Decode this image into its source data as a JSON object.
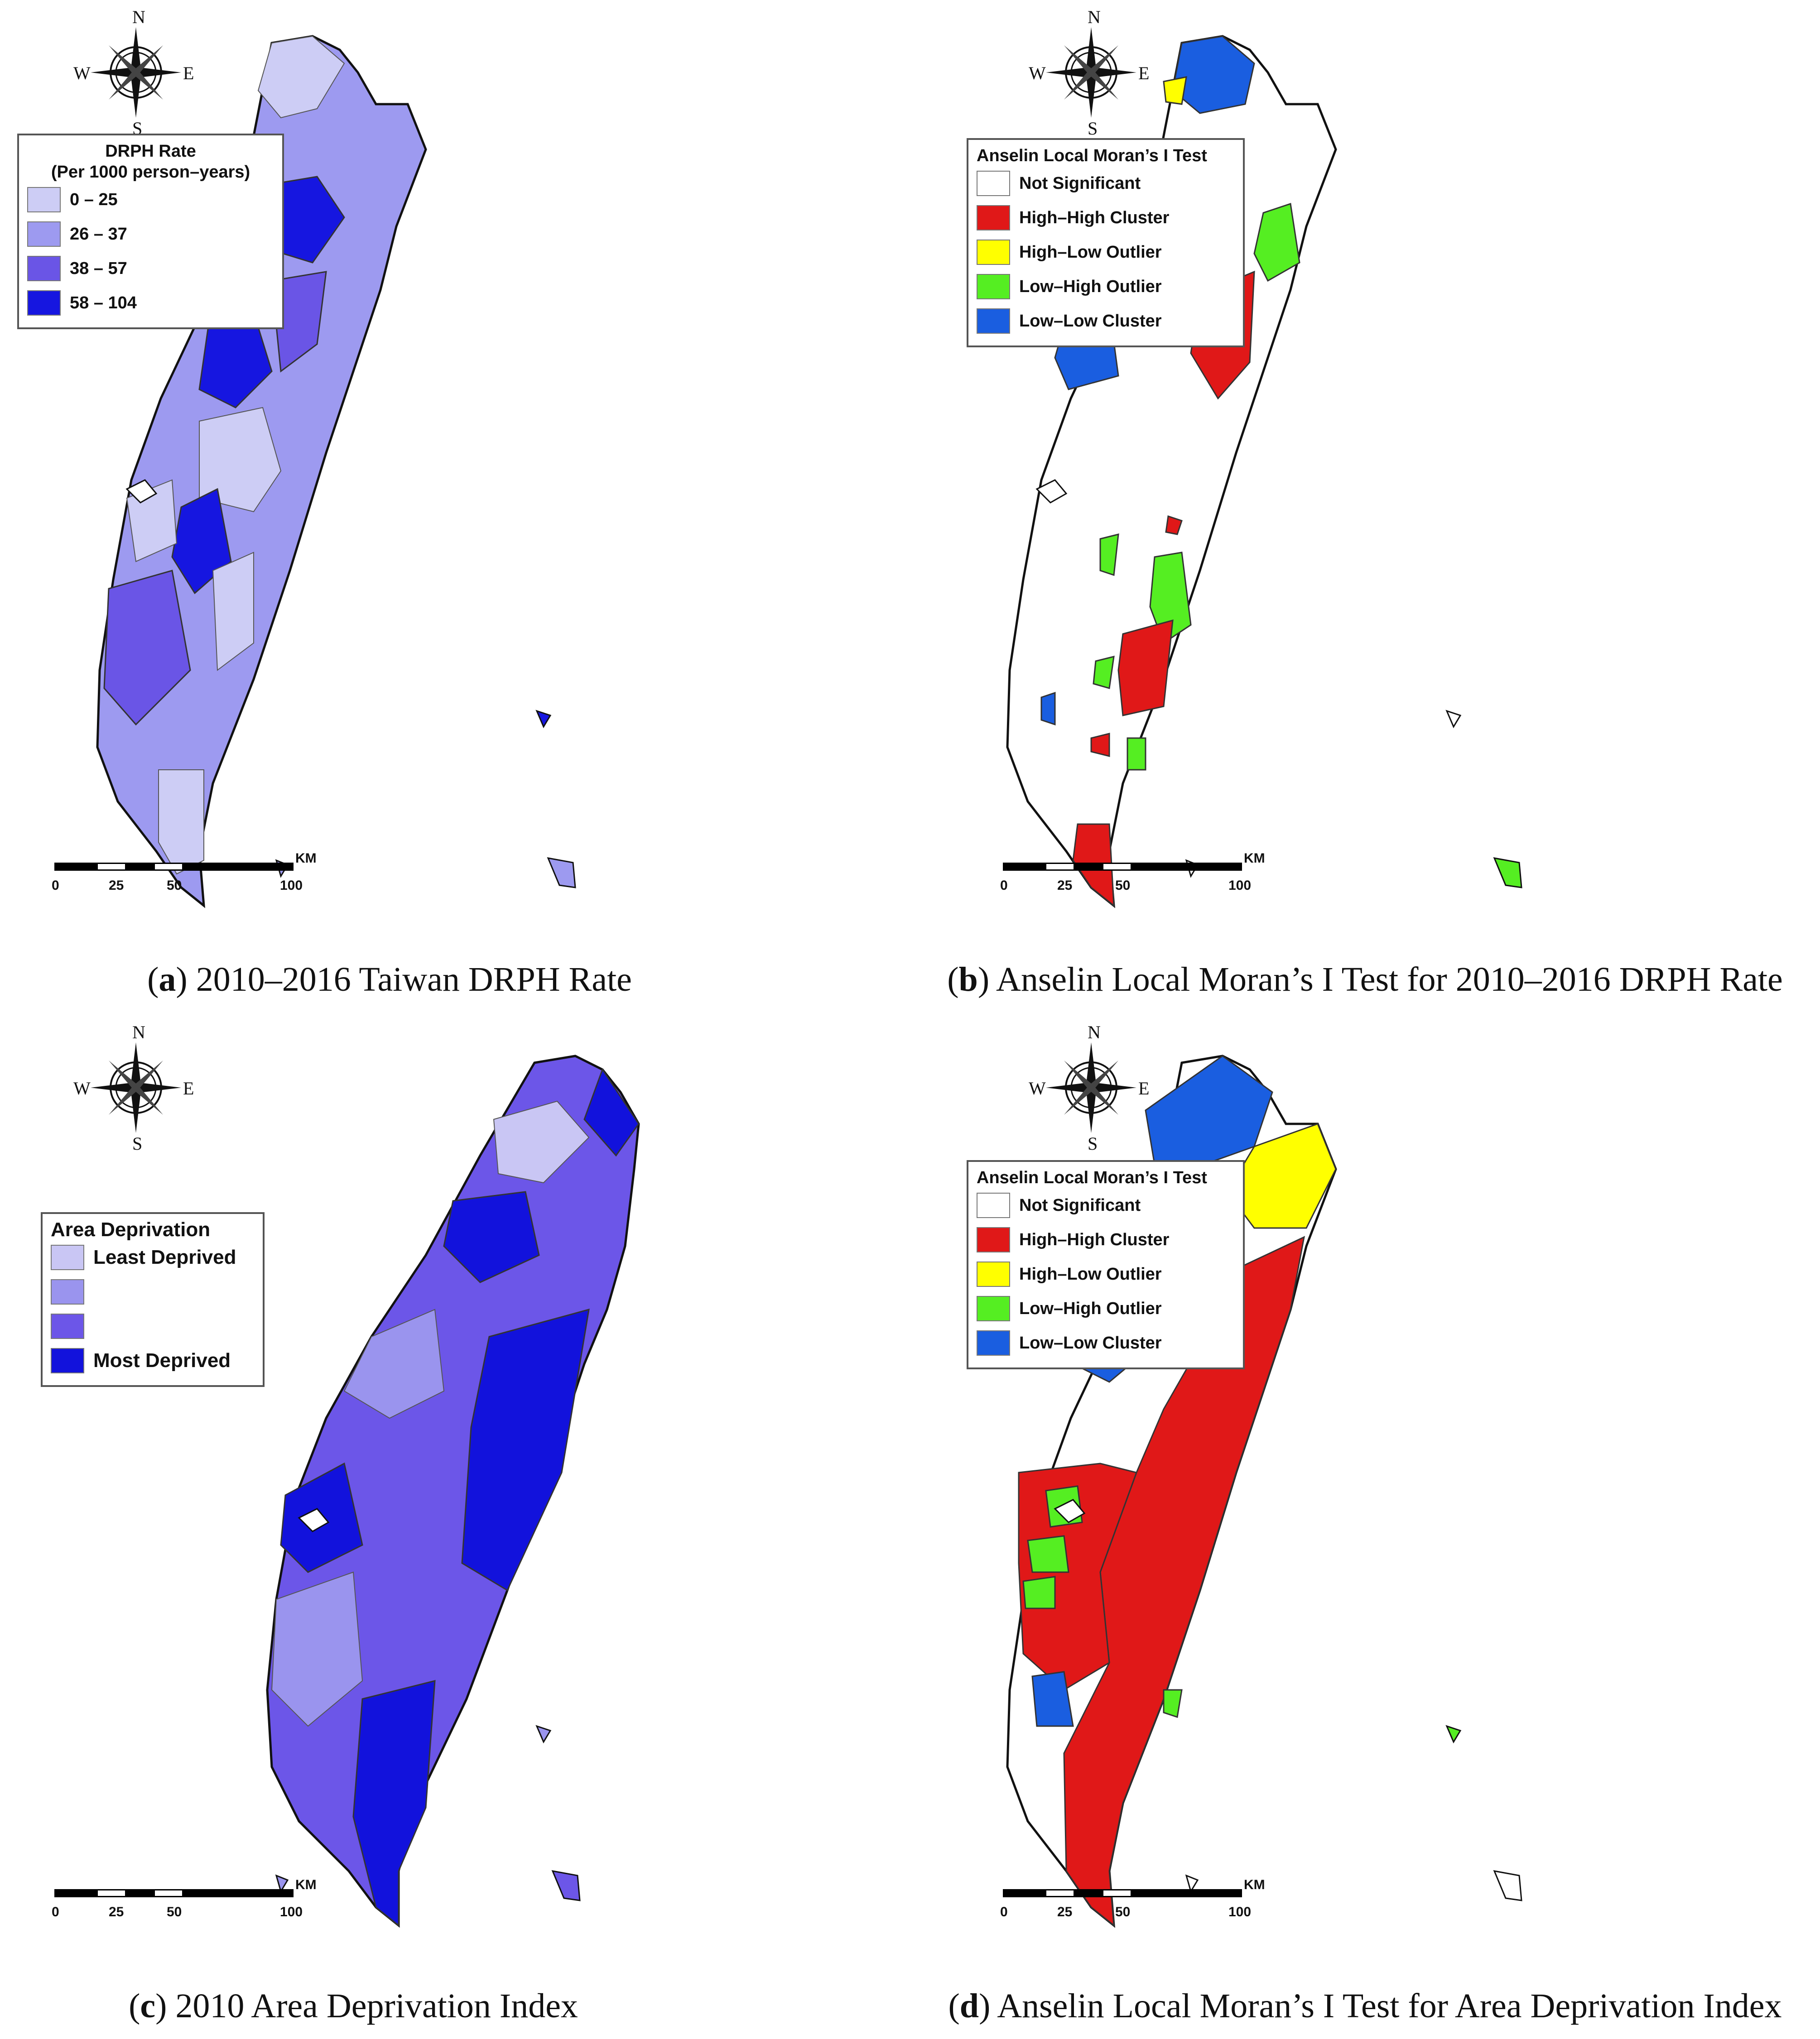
{
  "panels": {
    "a": {
      "caption_letter": "a",
      "caption_text": "2010–2016 Taiwan DRPH Rate",
      "legend_title_line1": "DRPH Rate",
      "legend_title_line2": "(Per 1000 person–years)",
      "legend_items": [
        {
          "label": "0 – 25",
          "color": "#cdcdf5"
        },
        {
          "label": "26 – 37",
          "color": "#9d9af0"
        },
        {
          "label": "38 – 57",
          "color": "#6a55e6"
        },
        {
          "label": "58 – 104",
          "color": "#1616e0"
        }
      ]
    },
    "b": {
      "caption_letter": "b",
      "caption_text": "Anselin Local Moran’s I Test for 2010–2016 DRPH Rate",
      "legend_title": "Anselin Local Moran’s I Test",
      "legend_items": [
        {
          "label": "Not Significant",
          "color": "#ffffff"
        },
        {
          "label": "High–High Cluster",
          "color": "#e01818"
        },
        {
          "label": "High–Low Outlier",
          "color": "#ffff00"
        },
        {
          "label": "Low–High Outlier",
          "color": "#55ee22"
        },
        {
          "label": "Low–Low Cluster",
          "color": "#1a5ee0"
        }
      ]
    },
    "c": {
      "caption_letter": "c",
      "caption_text": "2010 Area Deprivation Index",
      "legend_title": "Area Deprivation",
      "legend_items": [
        {
          "label": "Least Deprived",
          "color": "#c9c6f4"
        },
        {
          "label": "",
          "color": "#9a94ee"
        },
        {
          "label": "",
          "color": "#6c56e8"
        },
        {
          "label": "Most Deprived",
          "color": "#1212dc"
        }
      ]
    },
    "d": {
      "caption_letter": "d",
      "caption_text": "Anselin Local Moran’s I Test for Area Deprivation Index",
      "legend_title": "Anselin Local Moran’s I Test",
      "legend_items": [
        {
          "label": "Not Significant",
          "color": "#ffffff"
        },
        {
          "label": "High–High Cluster",
          "color": "#e01818"
        },
        {
          "label": "High–Low Outlier",
          "color": "#ffff00"
        },
        {
          "label": "Low–High Outlier",
          "color": "#55ee22"
        },
        {
          "label": "Low–Low Cluster",
          "color": "#1a5ee0"
        }
      ]
    }
  },
  "compass": {
    "north": "N",
    "south": "S",
    "east": "E",
    "west": "W"
  },
  "scale": {
    "unit": "KM",
    "ticks": [
      "0",
      "25",
      "50",
      "100"
    ]
  },
  "colors": {
    "outline": "#111111",
    "district_line": "#888888"
  }
}
